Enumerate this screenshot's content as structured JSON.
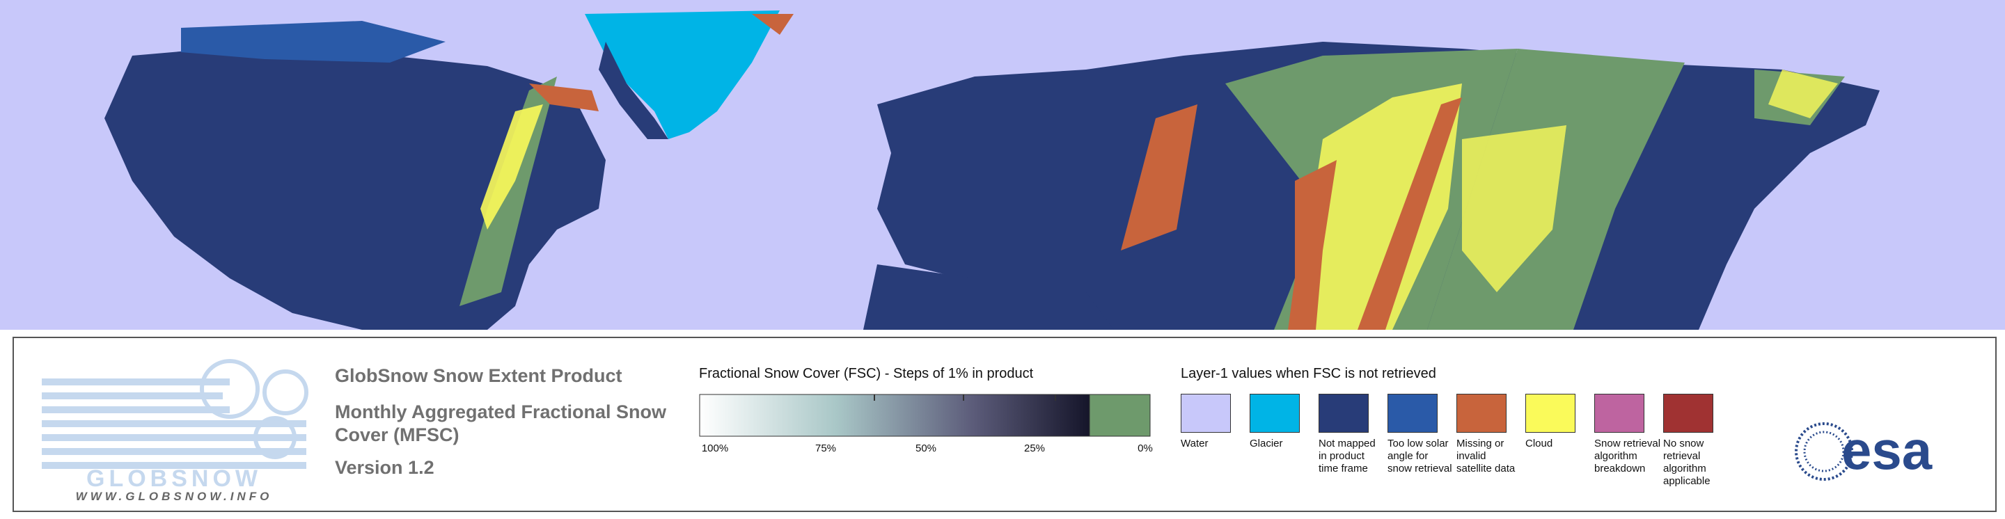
{
  "product": {
    "title": "GlobSnow Snow Extent Product",
    "subtitle": "Monthly Aggregated Fractional Snow Cover (MFSC)",
    "version": "Version 1.2"
  },
  "logo": {
    "name": "GLOBSNOW",
    "url": "WWW.GLOBSNOW.INFO"
  },
  "fsc_scale": {
    "title": "Fractional Snow Cover (FSC) - Steps of 1% in product",
    "labels": [
      "100%",
      "75%",
      "50%",
      "25%",
      "0%"
    ],
    "no_snow_color": "#6e9a6c"
  },
  "layer1": {
    "title": "Layer-1 values when FSC is not retrieved",
    "items": [
      {
        "label": "Water",
        "color": "#c8c8fa"
      },
      {
        "label": "Glacier",
        "color": "#00b4e6"
      },
      {
        "label": "Not mapped in product time frame",
        "color": "#283c78"
      },
      {
        "label": "Too low solar angle for snow retrieval",
        "color": "#2a5aa8"
      },
      {
        "label": "Missing or invalid satellite data",
        "color": "#c8643c"
      },
      {
        "label": "Cloud",
        "color": "#fafa5a"
      },
      {
        "label": "Snow retrieval algorithm breakdown",
        "color": "#be64a0"
      },
      {
        "label": "No snow retrieval algorithm applicable",
        "color": "#a03232"
      }
    ]
  },
  "esa": "esa"
}
